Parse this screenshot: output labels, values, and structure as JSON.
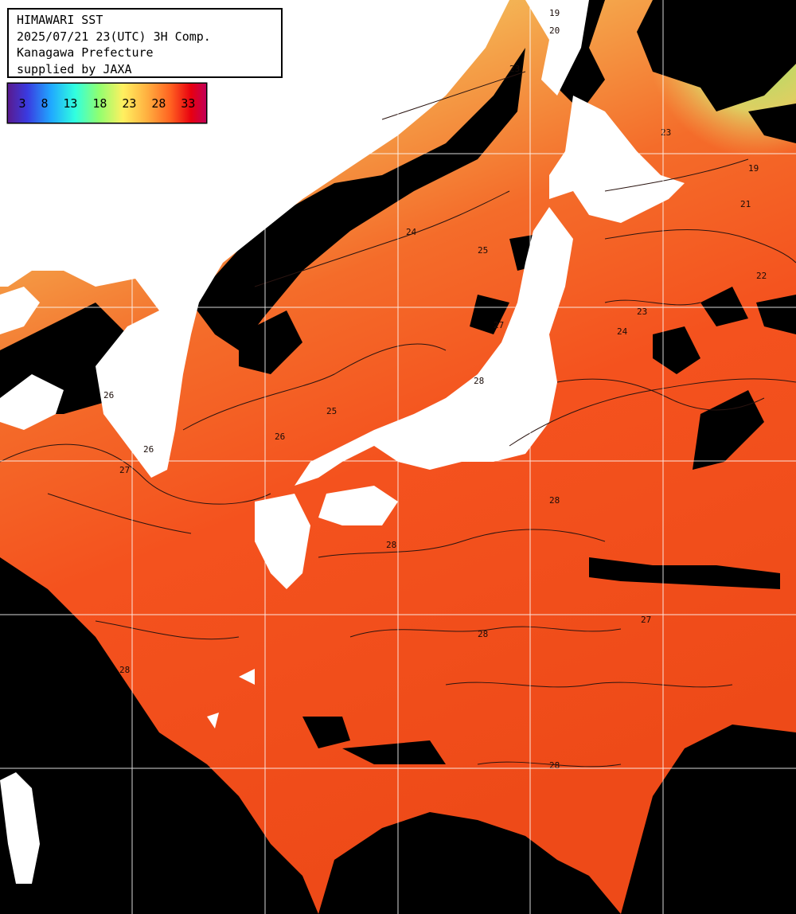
{
  "header": {
    "line1": "HIMAWARI SST",
    "line2": "2025/07/21 23(UTC) 3H Comp.",
    "line3": "Kanagawa Prefecture",
    "line4": "supplied by JAXA"
  },
  "legend": {
    "ticks": [
      "3",
      "8",
      "13",
      "18",
      "23",
      "28",
      "33"
    ],
    "colors": [
      "#5a1a8c",
      "#3a3ae0",
      "#20a8ff",
      "#30ffe0",
      "#90ff70",
      "#fff060",
      "#ffb040",
      "#ff6020",
      "#e80010",
      "#c0005a"
    ]
  },
  "contour_labels": [
    "19",
    "20",
    "21",
    "22",
    "23",
    "24",
    "25",
    "26",
    "27",
    "28"
  ],
  "colors": {
    "land": "#ffffff",
    "cloud": "#000000",
    "sea_warm": "#f5501c",
    "sea_mid": "#f8a04a",
    "sea_cool": "#d8f070",
    "grid": "#ffffff",
    "contour": "#2a1410"
  }
}
